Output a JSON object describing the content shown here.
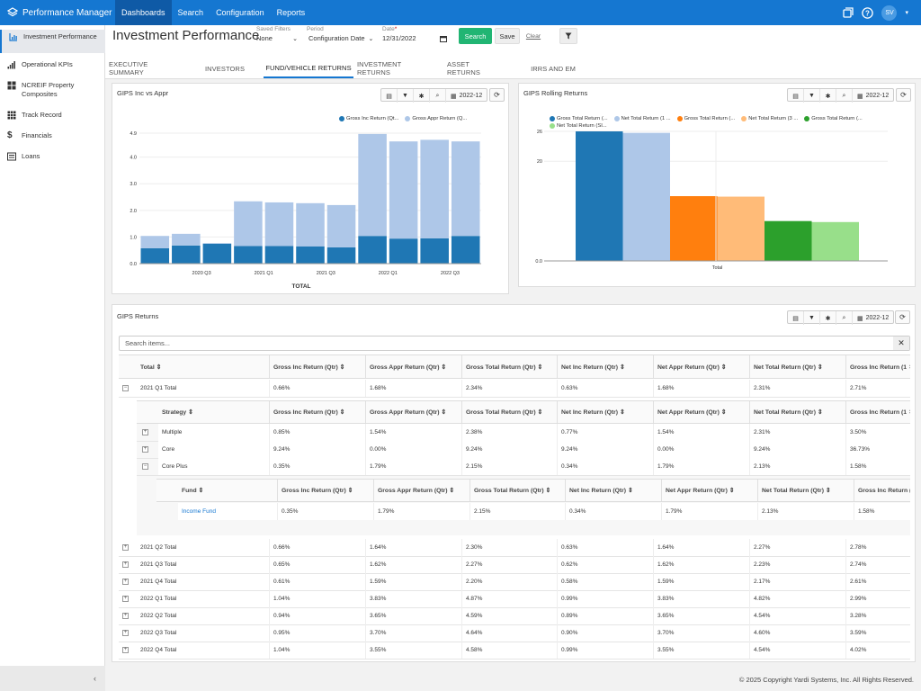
{
  "app": {
    "title": "Performance Manager",
    "user_initials": "SV"
  },
  "topnav": [
    {
      "label": "Dashboards",
      "active": true
    },
    {
      "label": "Search"
    },
    {
      "label": "Configuration"
    },
    {
      "label": "Reports"
    }
  ],
  "sidebar": [
    {
      "label": "Investment Performance",
      "icon": "chart-icon",
      "active": true
    },
    {
      "label": "Operational KPIs",
      "icon": "bar-signal-icon"
    },
    {
      "label": "NCREIF Property Composites",
      "icon": "grid-icon"
    },
    {
      "label": "Track Record",
      "icon": "table-icon"
    },
    {
      "label": "Financials",
      "icon": "dollar-icon"
    },
    {
      "label": "Loans",
      "icon": "list-icon"
    }
  ],
  "sidebar_collapse": "‹",
  "header": {
    "title": "Investment Performance",
    "saved_filters": {
      "label": "Saved Filters",
      "value": "None"
    },
    "period": {
      "label": "Period",
      "value": "Configuration Date"
    },
    "date": {
      "label": "Date",
      "required": "*",
      "value": "12/31/2022"
    },
    "search_button": "Search",
    "save_button": "Save",
    "clear_link": "Clear"
  },
  "tabs": [
    {
      "label": "EXECUTIVE SUMMARY"
    },
    {
      "label": "INVESTORS"
    },
    {
      "label": "FUND/VEHICLE RETURNS",
      "active": true
    },
    {
      "label": "INVESTMENT RETURNS"
    },
    {
      "label": "ASSET RETURNS"
    },
    {
      "label": "IRRS AND EM"
    }
  ],
  "panel_date": "2022-12",
  "chart_data": [
    {
      "title": "GIPS Inc vs Appr",
      "type": "bar",
      "stacked": true,
      "xlabel": "TOTAL",
      "ylim": [
        0,
        4.9
      ],
      "yticks": [
        "0.0",
        "1.0",
        "2.0",
        "3.0",
        "4.0",
        "4.9"
      ],
      "x_tick_labels": [
        "2020 Q3",
        "2021 Q1",
        "2021 Q3",
        "2022 Q1",
        "2022 Q3"
      ],
      "categories": [
        "2020 Q2",
        "2020 Q3",
        "2020 Q4",
        "2021 Q1",
        "2021 Q2",
        "2021 Q3",
        "2021 Q4",
        "2022 Q1",
        "2022 Q2",
        "2022 Q3",
        "2022 Q4"
      ],
      "series": [
        {
          "name": "Gross Inc Return (Qt...",
          "color": "#1f77b4",
          "values": [
            0.58,
            0.68,
            0.75,
            0.66,
            0.66,
            0.65,
            0.61,
            1.04,
            0.94,
            0.95,
            1.04
          ]
        },
        {
          "name": "Gross Appr Return (Q...",
          "color": "#aec7e8",
          "values": [
            0.46,
            0.44,
            0.02,
            1.68,
            1.64,
            1.62,
            1.59,
            3.83,
            3.65,
            3.7,
            3.55
          ]
        }
      ]
    },
    {
      "title": "GIPS Rolling Returns",
      "type": "bar",
      "xlabel": "",
      "ylim": [
        0,
        26
      ],
      "yticks": [
        "0.0",
        "20",
        "26"
      ],
      "categories": [
        "Total"
      ],
      "series": [
        {
          "name": "Gross Total Return (...",
          "color": "#1f77b4",
          "values": [
            26.0
          ]
        },
        {
          "name": "Net Total Return (1 ...",
          "color": "#aec7e8",
          "values": [
            25.7
          ]
        },
        {
          "name": "Gross Total Return (...",
          "color": "#ff7f0e",
          "values": [
            13.0
          ]
        },
        {
          "name": "Net Total Return (3 ...",
          "color": "#ffbb78",
          "values": [
            12.9
          ]
        },
        {
          "name": "Gross Total Return (...",
          "color": "#2ca02c",
          "values": [
            8.0
          ]
        },
        {
          "name": "Net Total Return (SI...",
          "color": "#98df8a",
          "values": [
            7.8
          ]
        }
      ]
    }
  ],
  "returns_panel": {
    "title": "GIPS Returns",
    "search_placeholder": "Search items...",
    "columns": [
      "Total",
      "Gross Inc Return (Qtr)",
      "Gross Appr Return (Qtr)",
      "Gross Total Return (Qtr)",
      "Net Inc Return (Qtr)",
      "Net Appr Return (Qtr)",
      "Net Total Return (Qtr)",
      "Gross Inc Return (1"
    ],
    "first_row": {
      "label": "2021 Q1 Total",
      "values": [
        "0.66%",
        "1.68%",
        "2.34%",
        "0.63%",
        "1.68%",
        "2.31%",
        "2.71%"
      ]
    },
    "strategy_columns": [
      "Strategy",
      "Gross Inc Return (Qtr)",
      "Gross Appr Return (Qtr)",
      "Gross Total Return (Qtr)",
      "Net Inc Return (Qtr)",
      "Net Appr Return (Qtr)",
      "Net Total Return (Qtr)",
      "Gross Inc Return (1"
    ],
    "strategy_rows": [
      {
        "label": "Multiple",
        "values": [
          "0.85%",
          "1.54%",
          "2.38%",
          "0.77%",
          "1.54%",
          "2.31%",
          "3.50%"
        ]
      },
      {
        "label": "Core",
        "values": [
          "9.24%",
          "0.00%",
          "9.24%",
          "9.24%",
          "0.00%",
          "9.24%",
          "36.73%"
        ]
      },
      {
        "label": "Core Plus",
        "values": [
          "0.35%",
          "1.79%",
          "2.15%",
          "0.34%",
          "1.79%",
          "2.13%",
          "1.58%"
        ]
      }
    ],
    "fund_columns": [
      "Fund",
      "Gross Inc Return (Qtr)",
      "Gross Appr Return (Qtr)",
      "Gross Total Return (Qtr)",
      "Net Inc Return (Qtr)",
      "Net Appr Return (Qtr)",
      "Net Total Return (Qtr)",
      "Gross Inc Return ("
    ],
    "fund_row": {
      "label": "Income Fund",
      "values": [
        "0.35%",
        "1.79%",
        "2.15%",
        "0.34%",
        "1.79%",
        "2.13%",
        "1.58%"
      ]
    },
    "rows": [
      {
        "label": "2021 Q2 Total",
        "values": [
          "0.66%",
          "1.64%",
          "2.30%",
          "0.63%",
          "1.64%",
          "2.27%",
          "2.78%"
        ]
      },
      {
        "label": "2021 Q3 Total",
        "values": [
          "0.65%",
          "1.62%",
          "2.27%",
          "0.62%",
          "1.62%",
          "2.23%",
          "2.74%"
        ]
      },
      {
        "label": "2021 Q4 Total",
        "values": [
          "0.61%",
          "1.59%",
          "2.20%",
          "0.58%",
          "1.59%",
          "2.17%",
          "2.61%"
        ]
      },
      {
        "label": "2022 Q1 Total",
        "values": [
          "1.04%",
          "3.83%",
          "4.87%",
          "0.99%",
          "3.83%",
          "4.82%",
          "2.99%"
        ]
      },
      {
        "label": "2022 Q2 Total",
        "values": [
          "0.94%",
          "3.65%",
          "4.59%",
          "0.89%",
          "3.65%",
          "4.54%",
          "3.28%"
        ]
      },
      {
        "label": "2022 Q3 Total",
        "values": [
          "0.95%",
          "3.70%",
          "4.64%",
          "0.90%",
          "3.70%",
          "4.60%",
          "3.59%"
        ]
      },
      {
        "label": "2022 Q4 Total",
        "values": [
          "1.04%",
          "3.55%",
          "4.58%",
          "0.99%",
          "3.55%",
          "4.54%",
          "4.02%"
        ]
      }
    ]
  },
  "footer": "© 2025 Copyright Yardi Systems, Inc. All Rights Reserved."
}
